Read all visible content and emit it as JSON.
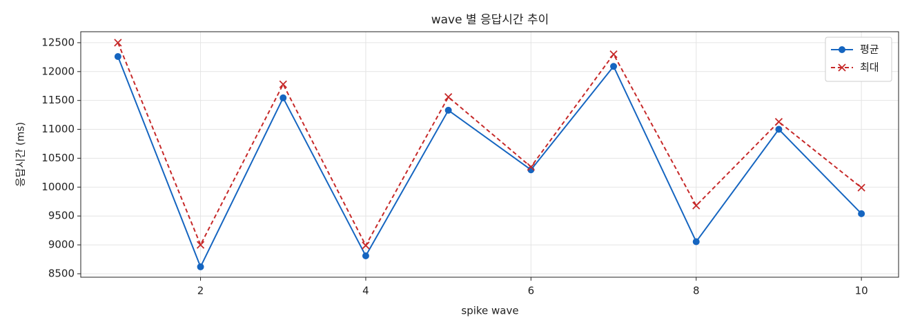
{
  "chart_data": {
    "type": "line",
    "title": "wave 별 응답시간 추이",
    "x_label": "spike wave",
    "y_label": "응답시간 (ms)",
    "x": [
      1,
      2,
      3,
      4,
      5,
      6,
      7,
      8,
      9,
      10
    ],
    "series": [
      {
        "name": "평균",
        "color": "#1565c0",
        "marker": "circle",
        "dash": false,
        "values": [
          12260,
          8620,
          11545,
          8810,
          11330,
          10300,
          12090,
          9055,
          11000,
          9540
        ]
      },
      {
        "name": "최대",
        "color": "#c62828",
        "marker": "x",
        "dash": true,
        "values": [
          12500,
          9000,
          11780,
          8990,
          11560,
          10350,
          12300,
          9680,
          11130,
          9990
        ]
      }
    ],
    "xlim": [
      0.55,
      10.45
    ],
    "xticks": [
      2,
      4,
      6,
      8,
      10
    ],
    "ylim": [
      8440,
      12690
    ],
    "yticks": [
      8500,
      9000,
      9500,
      10000,
      10500,
      11000,
      11500,
      12000,
      12500
    ],
    "grid": true,
    "legend": "upper right"
  }
}
